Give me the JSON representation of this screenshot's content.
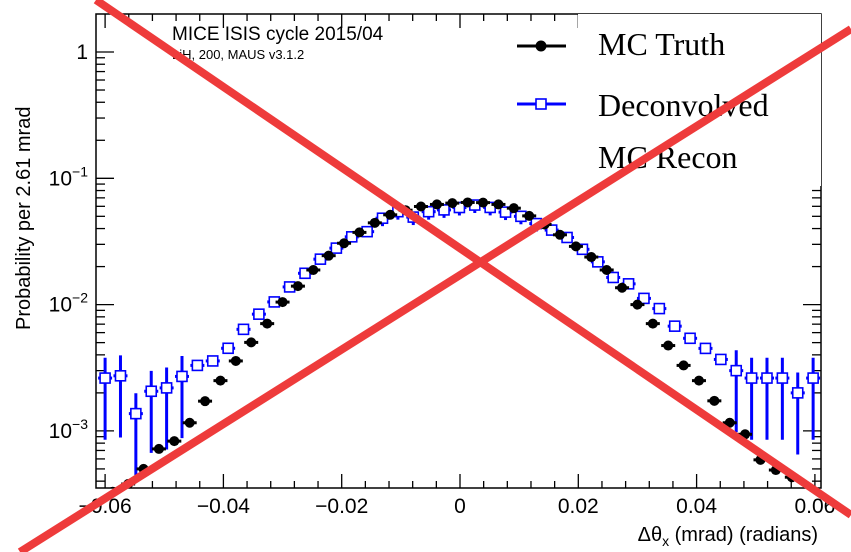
{
  "chart_data": {
    "type": "scatter",
    "title": "MICE ISIS cycle 2015/04",
    "subtitle": "LiH, 200, MAUS v3.1.2",
    "xlabel": "Δθx (mrad) (radians)",
    "xlabel_main": "Δθ",
    "xlabel_sub": "x",
    "xlabel_rest": " (mrad) (radians)",
    "ylabel": "Probability per 2.61 mrad",
    "xlim": [
      -0.0615,
      0.0615
    ],
    "ylim_log10": [
      -3.45,
      0.35
    ],
    "y_scale": "log",
    "x_ticks": [
      -0.06,
      -0.04,
      -0.02,
      0,
      0.02,
      0.04,
      0.06
    ],
    "x_tick_labels": [
      "−0.06",
      "−0.04",
      "−0.02",
      "0",
      "0.02",
      "0.04",
      "0.06"
    ],
    "y_ticks": [
      1,
      0.1,
      0.01,
      0.001
    ],
    "y_tick_labels": [
      {
        "base": "1",
        "exp": ""
      },
      {
        "base": "10",
        "exp": "−1"
      },
      {
        "base": "10",
        "exp": "−2"
      },
      {
        "base": "10",
        "exp": "−3"
      }
    ],
    "legend_position": "top-right",
    "overlay": "red diagonal cross",
    "overlay_color": "#ee3b3b",
    "series": [
      {
        "name": "MC Truth",
        "marker": "filled-circle",
        "color": "#000000",
        "points": [
          [
            -0.0587,
            0.00033
          ],
          [
            -0.0561,
            0.00038
          ],
          [
            -0.0535,
            0.0005
          ],
          [
            -0.0509,
            0.00072
          ],
          [
            -0.0483,
            0.00083
          ],
          [
            -0.0457,
            0.00116
          ],
          [
            -0.0431,
            0.00172
          ],
          [
            -0.0405,
            0.0025
          ],
          [
            -0.0379,
            0.00358
          ],
          [
            -0.0353,
            0.00502
          ],
          [
            -0.0326,
            0.00707
          ],
          [
            -0.03,
            0.01047
          ],
          [
            -0.0274,
            0.014
          ],
          [
            -0.0248,
            0.0188
          ],
          [
            -0.0222,
            0.0244
          ],
          [
            -0.0196,
            0.0306
          ],
          [
            -0.017,
            0.0373
          ],
          [
            -0.0144,
            0.0444
          ],
          [
            -0.0118,
            0.0514
          ],
          [
            -0.0092,
            0.0559
          ],
          [
            -0.0066,
            0.0598
          ],
          [
            -0.0039,
            0.0621
          ],
          [
            -0.0013,
            0.0636
          ],
          [
            0.0013,
            0.0644
          ],
          [
            0.0039,
            0.0642
          ],
          [
            0.0065,
            0.0621
          ],
          [
            0.0091,
            0.058
          ],
          [
            0.0117,
            0.0504
          ],
          [
            0.0143,
            0.0431
          ],
          [
            0.0169,
            0.0357
          ],
          [
            0.0196,
            0.0289
          ],
          [
            0.0222,
            0.0238
          ],
          [
            0.0248,
            0.0188
          ],
          [
            0.0274,
            0.0136
          ],
          [
            0.03,
            0.01
          ],
          [
            0.0326,
            0.00707
          ],
          [
            0.0352,
            0.00474
          ],
          [
            0.0378,
            0.0033
          ],
          [
            0.0404,
            0.0025
          ],
          [
            0.043,
            0.00173
          ],
          [
            0.0456,
            0.00116
          ],
          [
            0.0482,
            0.00094
          ],
          [
            0.0508,
            0.00059
          ],
          [
            0.0534,
            0.00049
          ],
          [
            0.0561,
            0.00043
          ]
        ]
      },
      {
        "name": "Deconvolved MC Recon",
        "marker": "open-square",
        "color": "#0000ff",
        "points": [
          [
            -0.06,
            0.00262
          ],
          [
            -0.0574,
            0.00273
          ],
          [
            -0.0548,
            0.00137
          ],
          [
            -0.0522,
            0.00206
          ],
          [
            -0.0496,
            0.00219
          ],
          [
            -0.047,
            0.0027
          ],
          [
            -0.0444,
            0.0033
          ],
          [
            -0.0418,
            0.00358
          ],
          [
            -0.0392,
            0.00451
          ],
          [
            -0.0366,
            0.00637
          ],
          [
            -0.034,
            0.0084
          ],
          [
            -0.0314,
            0.0105
          ],
          [
            -0.0288,
            0.0138
          ],
          [
            -0.0262,
            0.0177
          ],
          [
            -0.0236,
            0.0229
          ],
          [
            -0.0209,
            0.028
          ],
          [
            -0.0183,
            0.0344
          ],
          [
            -0.0157,
            0.0378
          ],
          [
            -0.0131,
            0.0483
          ],
          [
            -0.0105,
            0.0544
          ],
          [
            -0.0079,
            0.0493
          ],
          [
            -0.0053,
            0.0544
          ],
          [
            -0.0027,
            0.0562
          ],
          [
            -0.0001,
            0.0587
          ],
          [
            0.0025,
            0.0614
          ],
          [
            0.0051,
            0.0588
          ],
          [
            0.0077,
            0.054
          ],
          [
            0.0103,
            0.05
          ],
          [
            0.0129,
            0.0438
          ],
          [
            0.0155,
            0.0389
          ],
          [
            0.0181,
            0.034
          ],
          [
            0.0207,
            0.0274
          ],
          [
            0.0233,
            0.0218
          ],
          [
            0.0259,
            0.0164
          ],
          [
            0.0285,
            0.0146
          ],
          [
            0.0311,
            0.0112
          ],
          [
            0.0337,
            0.0093
          ],
          [
            0.0363,
            0.00675
          ],
          [
            0.0389,
            0.00541
          ],
          [
            0.0415,
            0.0045
          ],
          [
            0.0441,
            0.00368
          ],
          [
            0.0467,
            0.003
          ],
          [
            0.0493,
            0.00262
          ],
          [
            0.0519,
            0.00262
          ],
          [
            0.0545,
            0.00262
          ],
          [
            0.0571,
            0.002
          ],
          [
            0.0597,
            0.00262
          ],
          [
            0.0623,
            0.0027
          ],
          [
            0.0649,
            0.0028
          ]
        ]
      }
    ]
  }
}
